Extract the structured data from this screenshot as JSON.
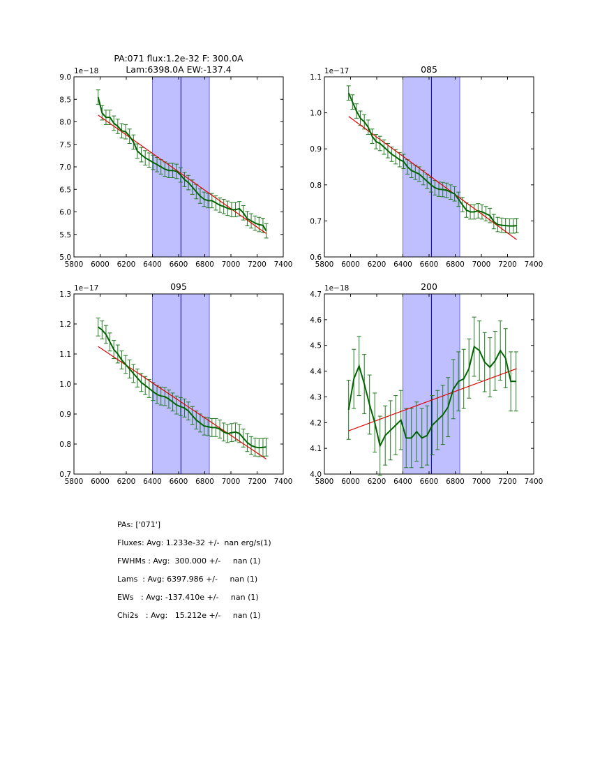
{
  "colors": {
    "band": "#bfbfff",
    "band_edge": "#6a6ad8",
    "center_line": "#0000a0",
    "data_line": "#006400",
    "errorbar": "#1f7a1f",
    "fit": "#e00000"
  },
  "chart_data": [
    {
      "type": "line",
      "title": "PA:071 flux:1.2e-32 F: 300.0A\nLam:6398.0A EW:-137.4",
      "xlim": [
        5800,
        7400
      ],
      "ylim": [
        5.0,
        9.0
      ],
      "xticks": [
        5800,
        6000,
        6200,
        6400,
        6600,
        6800,
        7000,
        7200,
        7400
      ],
      "yticks": [
        5.0,
        5.5,
        6.0,
        6.5,
        7.0,
        7.5,
        8.0,
        8.5,
        9.0
      ],
      "ytick_labels": [
        "5.0",
        "5.5",
        "6.0",
        "6.5",
        "7.0",
        "7.5",
        "8.0",
        "8.5",
        "9.0"
      ],
      "offset": "1e−18",
      "band": [
        6400,
        6835
      ],
      "center_line": 6618,
      "fit": {
        "x": [
          5985,
          7270
        ],
        "y": [
          8.15,
          5.52
        ]
      },
      "series": {
        "name": "flux",
        "x": [
          5985,
          6015,
          6045,
          6075,
          6105,
          6135,
          6165,
          6195,
          6225,
          6255,
          6285,
          6315,
          6345,
          6375,
          6405,
          6435,
          6465,
          6495,
          6525,
          6555,
          6585,
          6615,
          6645,
          6675,
          6705,
          6735,
          6765,
          6795,
          6825,
          6855,
          6885,
          6915,
          6945,
          6975,
          7005,
          7035,
          7065,
          7095,
          7125,
          7155,
          7185,
          7215,
          7245,
          7270
        ],
        "y": [
          8.55,
          8.2,
          8.1,
          8.1,
          7.97,
          7.9,
          7.8,
          7.78,
          7.68,
          7.55,
          7.35,
          7.27,
          7.2,
          7.15,
          7.1,
          7.05,
          7.0,
          6.95,
          6.92,
          6.92,
          6.9,
          6.82,
          6.72,
          6.65,
          6.55,
          6.45,
          6.35,
          6.28,
          6.25,
          6.25,
          6.2,
          6.15,
          6.12,
          6.08,
          6.05,
          6.05,
          6.07,
          5.98,
          5.85,
          5.8,
          5.75,
          5.72,
          5.7,
          5.58
        ],
        "err": 0.16
      }
    },
    {
      "type": "line",
      "title": "085",
      "xlim": [
        5800,
        7400
      ],
      "ylim": [
        0.6,
        1.1
      ],
      "xticks": [
        5800,
        6000,
        6200,
        6400,
        6600,
        6800,
        7000,
        7200,
        7400
      ],
      "yticks": [
        0.6,
        0.7,
        0.8,
        0.9,
        1.0,
        1.1
      ],
      "ytick_labels": [
        "0.6",
        "0.7",
        "0.8",
        "0.9",
        "1.0",
        "1.1"
      ],
      "offset": "1e−17",
      "band": [
        6400,
        6835
      ],
      "center_line": 6618,
      "fit": {
        "x": [
          5985,
          7270
        ],
        "y": [
          0.99,
          0.648
        ]
      },
      "series": {
        "name": "flux",
        "x": [
          5985,
          6015,
          6045,
          6075,
          6105,
          6135,
          6165,
          6195,
          6225,
          6255,
          6285,
          6315,
          6345,
          6375,
          6405,
          6435,
          6465,
          6495,
          6525,
          6555,
          6585,
          6615,
          6645,
          6675,
          6705,
          6735,
          6765,
          6795,
          6825,
          6855,
          6885,
          6915,
          6945,
          6975,
          7005,
          7035,
          7065,
          7095,
          7125,
          7155,
          7185,
          7215,
          7245,
          7270
        ],
        "y": [
          1.055,
          1.03,
          1.005,
          0.985,
          0.975,
          0.96,
          0.935,
          0.92,
          0.915,
          0.905,
          0.895,
          0.885,
          0.878,
          0.87,
          0.865,
          0.85,
          0.84,
          0.835,
          0.83,
          0.82,
          0.81,
          0.8,
          0.792,
          0.788,
          0.787,
          0.785,
          0.78,
          0.775,
          0.76,
          0.745,
          0.73,
          0.725,
          0.725,
          0.728,
          0.725,
          0.72,
          0.715,
          0.698,
          0.69,
          0.688,
          0.687,
          0.686,
          0.686,
          0.687
        ],
        "err": 0.02
      }
    },
    {
      "type": "line",
      "title": "095",
      "xlim": [
        5800,
        7400
      ],
      "ylim": [
        0.7,
        1.3
      ],
      "xticks": [
        5800,
        6000,
        6200,
        6400,
        6600,
        6800,
        7000,
        7200,
        7400
      ],
      "yticks": [
        0.7,
        0.8,
        0.9,
        1.0,
        1.1,
        1.2,
        1.3
      ],
      "ytick_labels": [
        "0.7",
        "0.8",
        "0.9",
        "1.0",
        "1.1",
        "1.2",
        "1.3"
      ],
      "offset": "1e−17",
      "band": [
        6400,
        6835
      ],
      "center_line": 6618,
      "fit": {
        "x": [
          5985,
          7270
        ],
        "y": [
          1.125,
          0.75
        ]
      },
      "series": {
        "name": "flux",
        "x": [
          5985,
          6015,
          6045,
          6075,
          6105,
          6135,
          6165,
          6195,
          6225,
          6255,
          6285,
          6315,
          6345,
          6375,
          6405,
          6435,
          6465,
          6495,
          6525,
          6555,
          6585,
          6615,
          6645,
          6675,
          6705,
          6735,
          6765,
          6795,
          6825,
          6855,
          6885,
          6915,
          6945,
          6975,
          7005,
          7035,
          7065,
          7095,
          7125,
          7155,
          7185,
          7215,
          7245,
          7270
        ],
        "y": [
          1.19,
          1.18,
          1.165,
          1.14,
          1.115,
          1.1,
          1.08,
          1.065,
          1.05,
          1.035,
          1.02,
          1.005,
          0.995,
          0.985,
          0.975,
          0.965,
          0.96,
          0.958,
          0.95,
          0.94,
          0.93,
          0.925,
          0.92,
          0.91,
          0.895,
          0.88,
          0.87,
          0.86,
          0.858,
          0.855,
          0.855,
          0.85,
          0.84,
          0.835,
          0.838,
          0.84,
          0.835,
          0.82,
          0.805,
          0.795,
          0.79,
          0.788,
          0.789,
          0.79
        ],
        "err": 0.03
      }
    },
    {
      "type": "line",
      "title": "200",
      "xlim": [
        5800,
        7400
      ],
      "ylim": [
        4.0,
        4.7
      ],
      "xticks": [
        5800,
        6000,
        6200,
        6400,
        6600,
        6800,
        7000,
        7200,
        7400
      ],
      "yticks": [
        4.0,
        4.1,
        4.2,
        4.3,
        4.4,
        4.5,
        4.6,
        4.7
      ],
      "ytick_labels": [
        "4.0",
        "4.1",
        "4.2",
        "4.3",
        "4.4",
        "4.5",
        "4.6",
        "4.7"
      ],
      "offset": "1e−18",
      "band": [
        6400,
        6835
      ],
      "center_line": 6618,
      "fit": {
        "x": [
          5985,
          7270
        ],
        "y": [
          4.168,
          4.41
        ]
      },
      "series": {
        "name": "flux",
        "x": [
          5985,
          6025,
          6065,
          6105,
          6145,
          6185,
          6225,
          6265,
          6305,
          6345,
          6385,
          6425,
          6465,
          6505,
          6545,
          6585,
          6625,
          6665,
          6705,
          6745,
          6785,
          6825,
          6865,
          6905,
          6945,
          6985,
          7025,
          7065,
          7105,
          7145,
          7185,
          7225,
          7265
        ],
        "y": [
          4.25,
          4.37,
          4.42,
          4.35,
          4.27,
          4.2,
          4.11,
          4.15,
          4.17,
          4.19,
          4.21,
          4.14,
          4.14,
          4.165,
          4.14,
          4.15,
          4.19,
          4.21,
          4.23,
          4.26,
          4.33,
          4.36,
          4.37,
          4.41,
          4.495,
          4.48,
          4.435,
          4.415,
          4.44,
          4.48,
          4.45,
          4.36,
          4.36
        ],
        "err": 0.115
      }
    }
  ],
  "stats": {
    "pas": "PAs: ['071']",
    "fluxes": "Fluxes: Avg: 1.233e-32 +/-  nan erg/s(1)",
    "fwhms": "FWHMs : Avg:  300.000 +/-     nan (1)",
    "lams": "Lams  : Avg: 6397.986 +/-     nan (1)",
    "ews": "EWs   : Avg: -137.410e +/-     nan (1)",
    "chi2s": "Chi2s   : Avg:   15.212e +/-     nan (1)"
  }
}
